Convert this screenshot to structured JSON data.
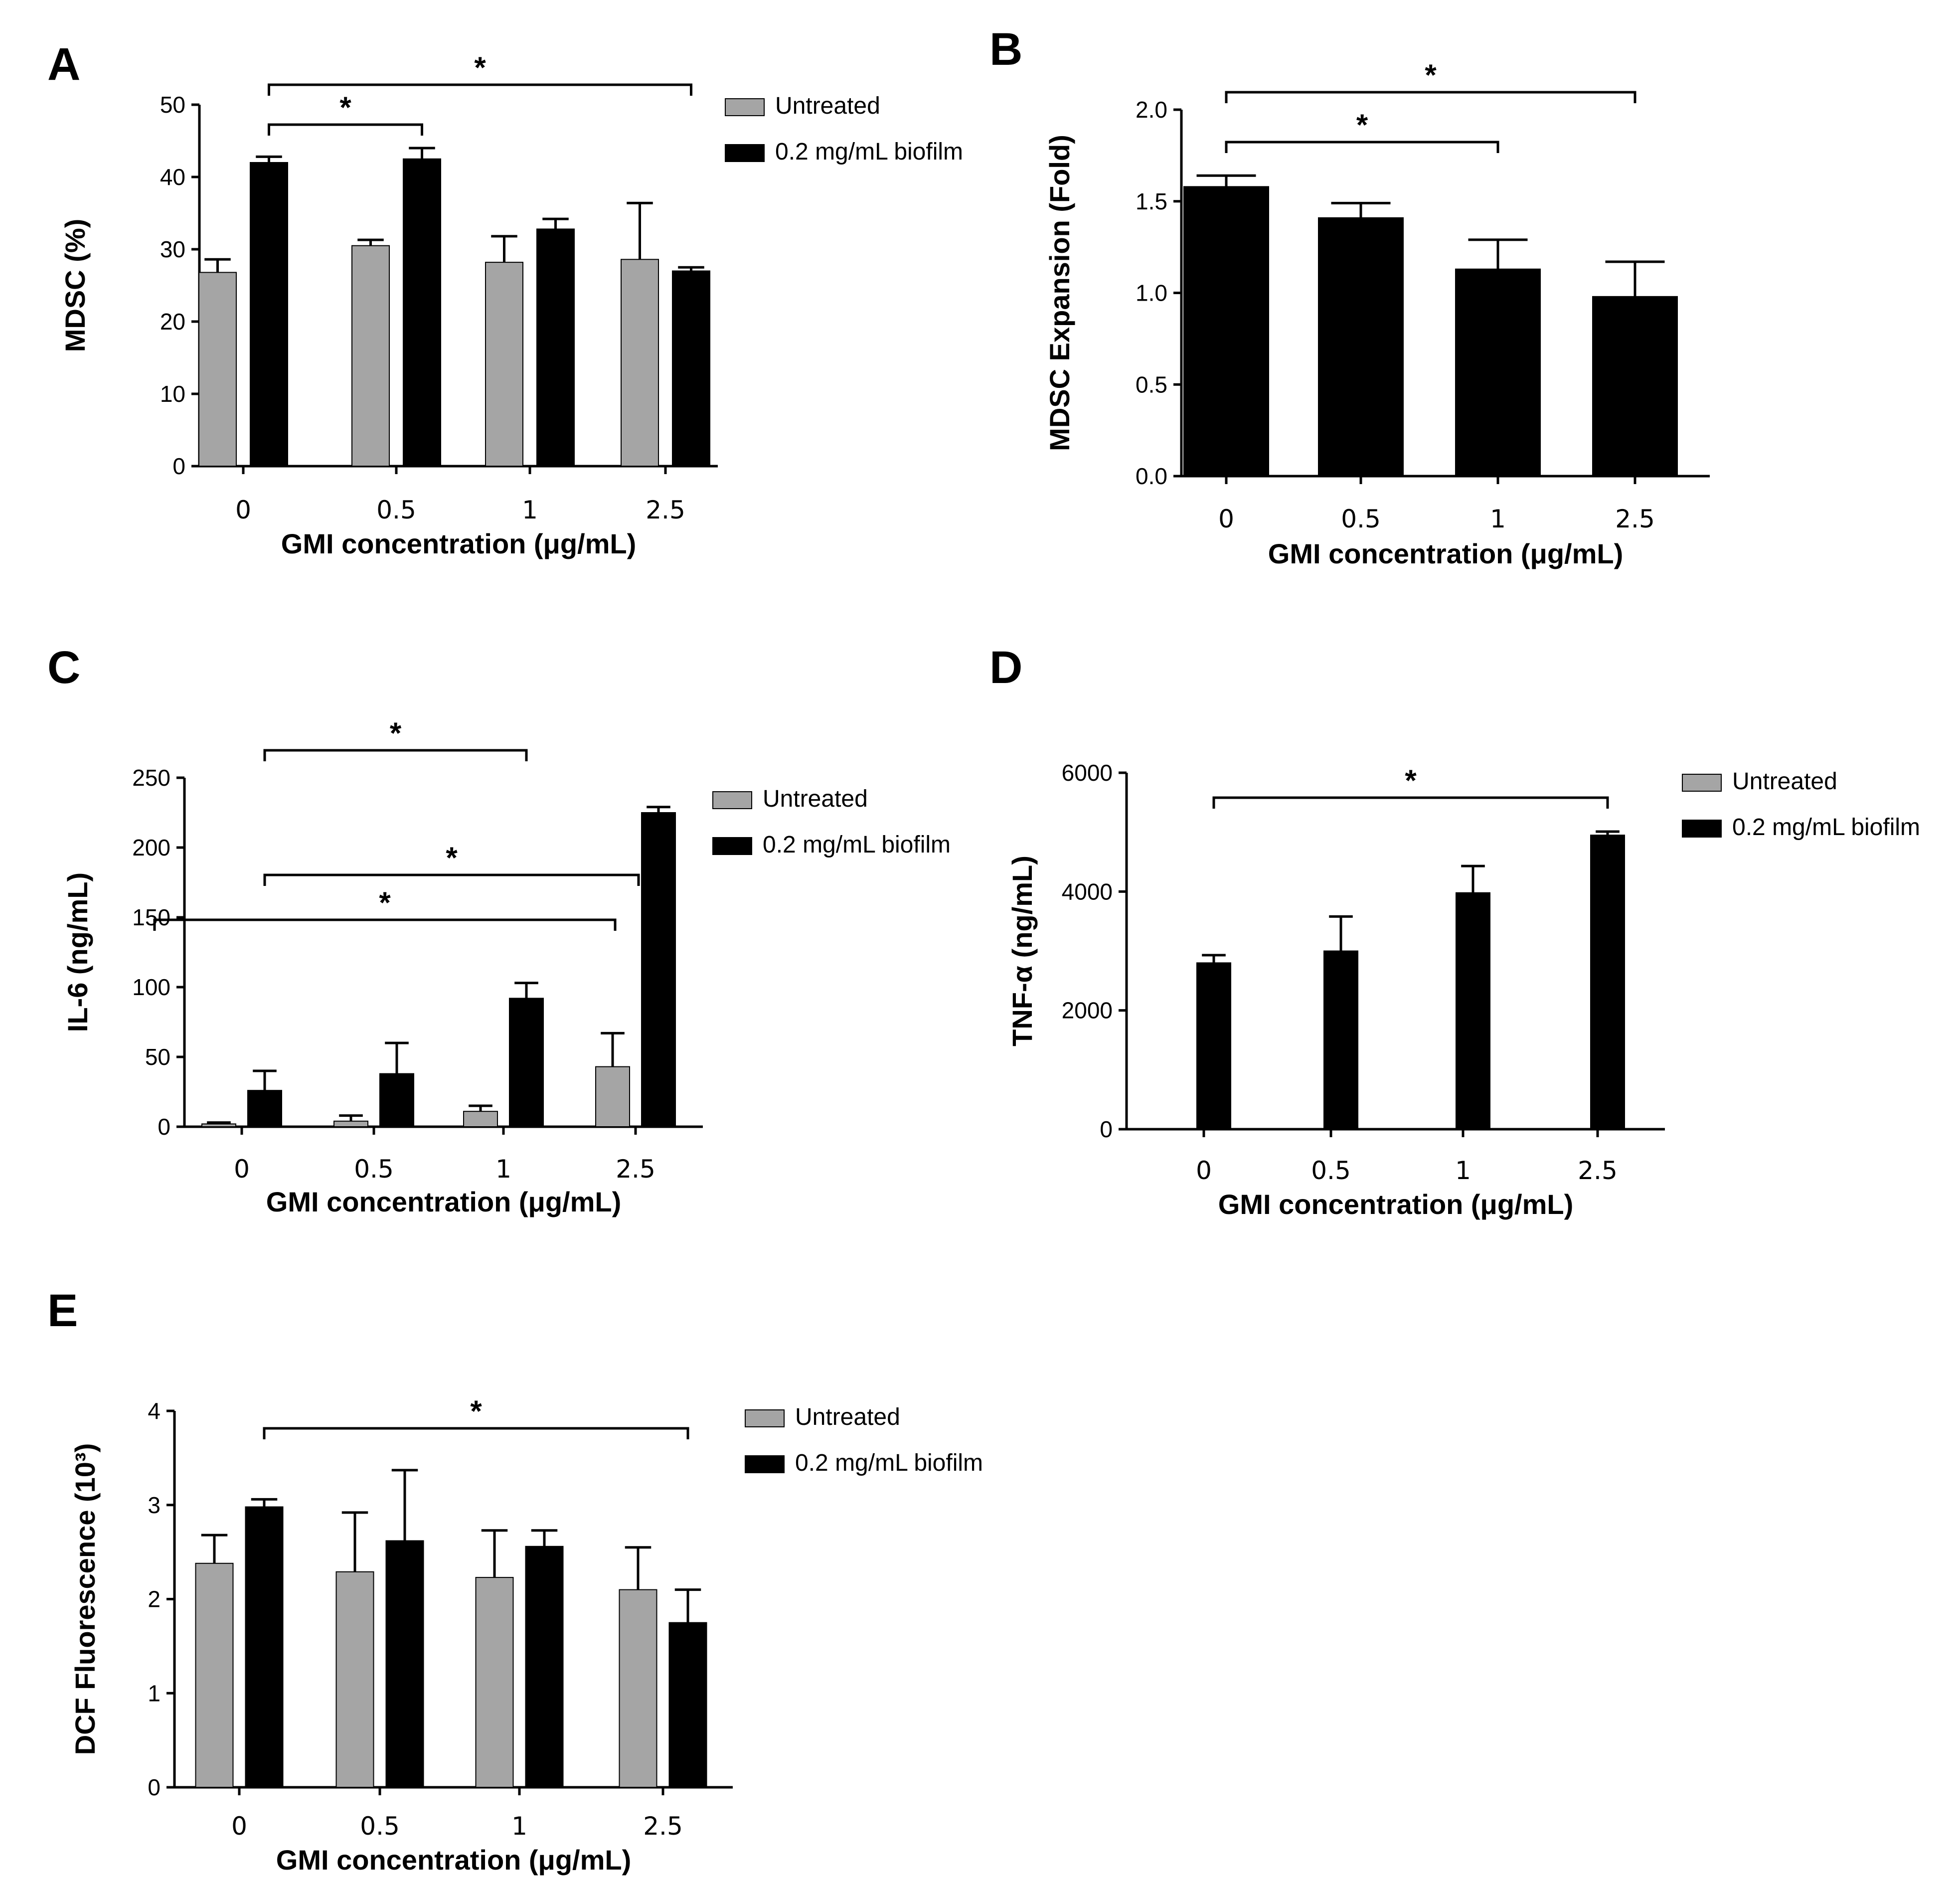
{
  "figure": {
    "colors": {
      "untreated": "#a5a5a5",
      "biofilm": "#000000",
      "axis": "#000000"
    }
  },
  "chart_data": [
    {
      "id": "A",
      "type": "bar",
      "panel_label": "A",
      "categories": [
        "0",
        "0.5",
        "1",
        "2.5"
      ],
      "xlabel": "GMI concentration (μg/mL)",
      "ylabel": "MDSC (%)",
      "ylim": [
        0,
        50
      ],
      "yticks": [
        0,
        10,
        20,
        30,
        40,
        50
      ],
      "ytick_labels": [
        "0",
        "10",
        "20",
        "30",
        "40",
        "50"
      ],
      "legend": [
        "Untreated",
        "0.2 mg/mL biofilm"
      ],
      "series": [
        {
          "name": "Untreated",
          "color_key": "untreated",
          "values": [
            26.8,
            30.5,
            28.2,
            28.6
          ],
          "errors": [
            1.8,
            0.8,
            3.6,
            7.8
          ]
        },
        {
          "name": "0.2 mg/mL biofilm",
          "color_key": "biofilm",
          "values": [
            42.0,
            42.5,
            32.8,
            27.0
          ],
          "errors": [
            0.8,
            1.5,
            1.4,
            0.5
          ]
        }
      ],
      "significance": [
        {
          "from": "0|1",
          "to": "1|1",
          "label": "*"
        },
        {
          "from": "0|1",
          "to": "3|1",
          "label": "*"
        }
      ]
    },
    {
      "id": "B",
      "type": "bar",
      "panel_label": "B",
      "categories": [
        "0",
        "0.5",
        "1",
        "2.5"
      ],
      "xlabel": "GMI concentration (μg/mL)",
      "ylabel": "MDSC Expansion (Fold)",
      "ylim": [
        0,
        2.0
      ],
      "yticks": [
        0,
        0.5,
        1.0,
        1.5,
        2.0
      ],
      "ytick_labels": [
        "0.0",
        "0.5",
        "1.0",
        "1.5",
        "2.0"
      ],
      "legend": [],
      "series": [
        {
          "name": "MDSC expansion",
          "color_key": "biofilm",
          "values": [
            1.58,
            1.41,
            1.13,
            0.98
          ],
          "errors": [
            0.06,
            0.08,
            0.16,
            0.19
          ]
        }
      ],
      "significance": [
        {
          "from": "0|0",
          "to": "2|0",
          "label": "*"
        },
        {
          "from": "0|0",
          "to": "3|0",
          "label": "*"
        }
      ]
    },
    {
      "id": "C",
      "type": "bar",
      "panel_label": "C",
      "categories": [
        "0",
        "0.5",
        "1",
        "2.5"
      ],
      "xlabel": "GMI concentration (μg/mL)",
      "ylabel": "IL-6 (ng/mL)",
      "ylim": [
        0,
        250
      ],
      "yticks": [
        0,
        50,
        100,
        150,
        200,
        250
      ],
      "ytick_labels": [
        "0",
        "50",
        "100",
        "150",
        "200",
        "250"
      ],
      "legend": [
        "Untreated",
        "0.2 mg/mL biofilm"
      ],
      "series": [
        {
          "name": "Untreated",
          "color_key": "untreated",
          "values": [
            2,
            4,
            11,
            43
          ],
          "errors": [
            1,
            4,
            4,
            24
          ]
        },
        {
          "name": "0.2 mg/mL biofilm",
          "color_key": "biofilm",
          "values": [
            26,
            38,
            92,
            225
          ],
          "errors": [
            14,
            22,
            11,
            4
          ]
        }
      ],
      "significance": [
        {
          "from": "0|1",
          "to": "3|1",
          "label": "*"
        },
        {
          "from": "0|1",
          "to": "2|1",
          "label": "*"
        },
        {
          "from": "0|0",
          "to": "3|0",
          "label": "*"
        }
      ]
    },
    {
      "id": "D",
      "type": "bar",
      "panel_label": "D",
      "categories": [
        "0",
        "0.5",
        "1",
        "2.5"
      ],
      "xlabel": "GMI concentration (μg/mL)",
      "ylabel": "TNF-α (ng/mL)",
      "ylim": [
        0,
        6000
      ],
      "yticks": [
        0,
        2000,
        4000,
        6000
      ],
      "ytick_labels": [
        "0",
        "2000",
        "4000",
        "6000"
      ],
      "legend": [
        "Untreated",
        "0.2 mg/mL biofilm"
      ],
      "series": [
        {
          "name": "Untreated",
          "color_key": "untreated",
          "values": [
            0,
            0,
            0,
            0
          ],
          "errors": [
            0,
            0,
            0,
            0
          ]
        },
        {
          "name": "0.2 mg/mL biofilm",
          "color_key": "biofilm",
          "values": [
            2800,
            3000,
            3980,
            4950
          ],
          "errors": [
            130,
            580,
            450,
            60
          ]
        }
      ],
      "significance": [
        {
          "from": "0|1",
          "to": "3|1",
          "label": "*"
        }
      ]
    },
    {
      "id": "E",
      "type": "bar",
      "panel_label": "E",
      "categories": [
        "0",
        "0.5",
        "1",
        "2.5"
      ],
      "xlabel": "GMI concentration (μg/mL)",
      "ylabel": "DCF Fluorescence (10³)",
      "ylim": [
        0,
        4
      ],
      "yticks": [
        0,
        1,
        2,
        3,
        4
      ],
      "ytick_labels": [
        "0",
        "1",
        "2",
        "3",
        "4"
      ],
      "legend": [
        "Untreated",
        "0.2 mg/mL biofilm"
      ],
      "series": [
        {
          "name": "Untreated",
          "color_key": "untreated",
          "values": [
            2.38,
            2.29,
            2.23,
            2.1
          ],
          "errors": [
            0.3,
            0.63,
            0.5,
            0.45
          ]
        },
        {
          "name": "0.2 mg/mL biofilm",
          "color_key": "biofilm",
          "values": [
            2.98,
            2.62,
            2.56,
            1.75
          ],
          "errors": [
            0.08,
            0.75,
            0.17,
            0.35
          ]
        }
      ],
      "significance": [
        {
          "from": "0|1",
          "to": "3|1",
          "label": "*"
        }
      ]
    }
  ]
}
